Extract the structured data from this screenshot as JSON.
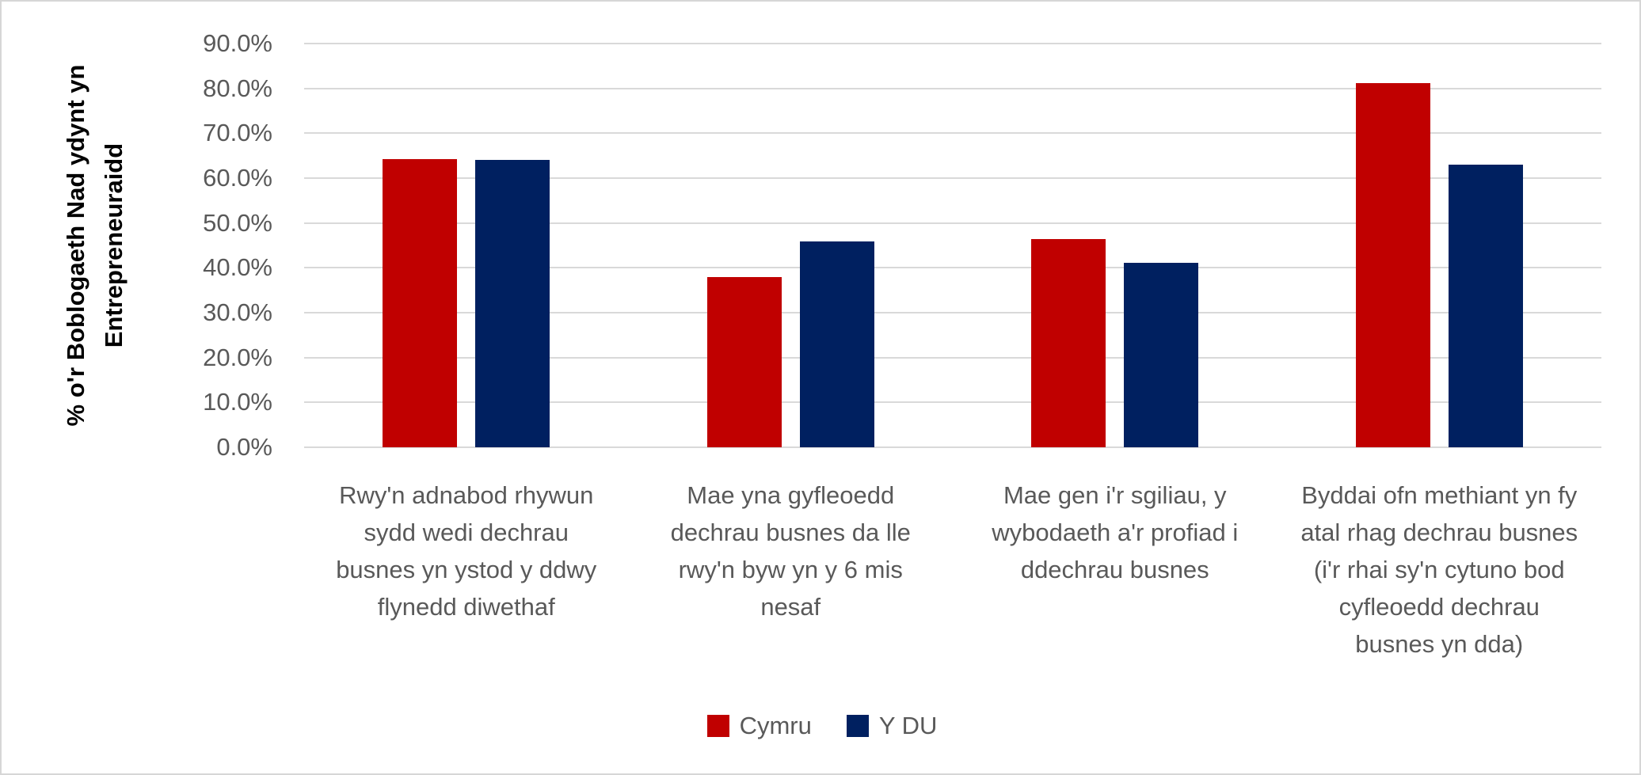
{
  "chart_data": {
    "type": "bar",
    "title": "",
    "ylabel": "% o'r Boblogaeth Nad ydynt yn Entrepreneuraidd",
    "categories": [
      "Rwy'n adnabod rhywun sydd wedi dechrau busnes yn ystod y ddwy flynedd diwethaf",
      "Mae yna gyfleoedd dechrau busnes da lle rwy'n byw yn y 6 mis nesaf",
      "Mae gen i'r sgiliau, y wybodaeth a'r profiad i ddechrau busnes",
      "Byddai ofn methiant yn fy atal rhag dechrau busnes (i'r rhai sy'n cytuno bod cyfleoedd dechrau busnes yn dda)"
    ],
    "series": [
      {
        "name": "Cymru",
        "color": "#C00000",
        "values": [
          64.3,
          37.9,
          46.5,
          81.2
        ]
      },
      {
        "name": "Y DU",
        "color": "#002060",
        "values": [
          64.0,
          45.9,
          41.2,
          63.0
        ]
      }
    ],
    "ylim": [
      0,
      90
    ],
    "ytick_step": 10,
    "ytick_suffix": "%",
    "grid": true,
    "legend_position": "bottom",
    "axis_text_color": "#595959",
    "gridline_color": "#D9D9D9",
    "background_color": "#FFFFFF"
  }
}
